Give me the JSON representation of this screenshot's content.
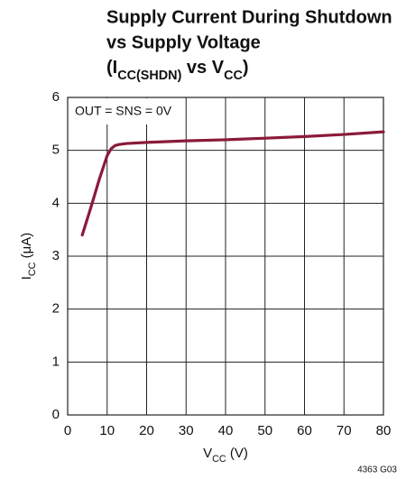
{
  "chart_data": {
    "type": "line",
    "title": {
      "line1": "Supply Current During Shutdown",
      "line2": "vs Supply Voltage",
      "line3": [
        {
          "text": "(I"
        },
        {
          "text": "CC(SHDN)",
          "sub": true
        },
        {
          "text": " vs V"
        },
        {
          "text": "CC",
          "sub": true
        },
        {
          "text": ")"
        }
      ]
    },
    "x_label": [
      {
        "text": "V"
      },
      {
        "text": "CC",
        "sub": true
      },
      {
        "text": " (V)"
      }
    ],
    "y_label": [
      {
        "text": "I"
      },
      {
        "text": "CC",
        "sub": true
      },
      {
        "text": " (μA)"
      }
    ],
    "annotation": "OUT = SNS = 0V",
    "figure_code": "4363 G03",
    "x": [
      3.7,
      6,
      8,
      10,
      11,
      12,
      13,
      15,
      20,
      30,
      40,
      50,
      60,
      70,
      80
    ],
    "values": [
      3.4,
      3.95,
      4.45,
      4.9,
      5.03,
      5.09,
      5.11,
      5.13,
      5.15,
      5.18,
      5.2,
      5.23,
      5.26,
      5.3,
      5.35
    ],
    "color": "#8b1a3a",
    "xlim": [
      0,
      80
    ],
    "xticks": [
      0,
      10,
      20,
      30,
      40,
      50,
      60,
      70,
      80
    ],
    "ylim": [
      0,
      6
    ],
    "yticks": [
      0,
      1,
      2,
      3,
      4,
      5,
      6
    ],
    "grid": true
  }
}
